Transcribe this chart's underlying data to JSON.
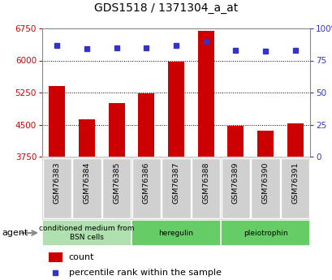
{
  "title": "GDS1518 / 1371304_a_at",
  "categories": [
    "GSM76383",
    "GSM76384",
    "GSM76385",
    "GSM76386",
    "GSM76387",
    "GSM76388",
    "GSM76389",
    "GSM76390",
    "GSM76391"
  ],
  "counts": [
    5400,
    4630,
    5010,
    5230,
    5980,
    6700,
    4480,
    4360,
    4520
  ],
  "percentiles": [
    87,
    84,
    85,
    85,
    87,
    90,
    83,
    82,
    83
  ],
  "y_min": 3750,
  "y_max": 6750,
  "y_ticks": [
    3750,
    4500,
    5250,
    6000,
    6750
  ],
  "y2_ticks": [
    0,
    25,
    50,
    75,
    100
  ],
  "bar_color": "#cc0000",
  "dot_color": "#3333cc",
  "plot_bg": "#ffffff",
  "tick_bg": "#d0d0d0",
  "agent_group1_color": "#b0e0b0",
  "agent_group2_color": "#66cc66",
  "agent_group3_color": "#66cc66",
  "legend_count_label": "count",
  "legend_pct_label": "percentile rank within the sample",
  "agent_label": "agent",
  "group_defs": [
    {
      "start": 0,
      "end": 3,
      "label": "conditioned medium from\nBSN cells"
    },
    {
      "start": 3,
      "end": 6,
      "label": "heregulin"
    },
    {
      "start": 6,
      "end": 9,
      "label": "pleiotrophin"
    }
  ]
}
